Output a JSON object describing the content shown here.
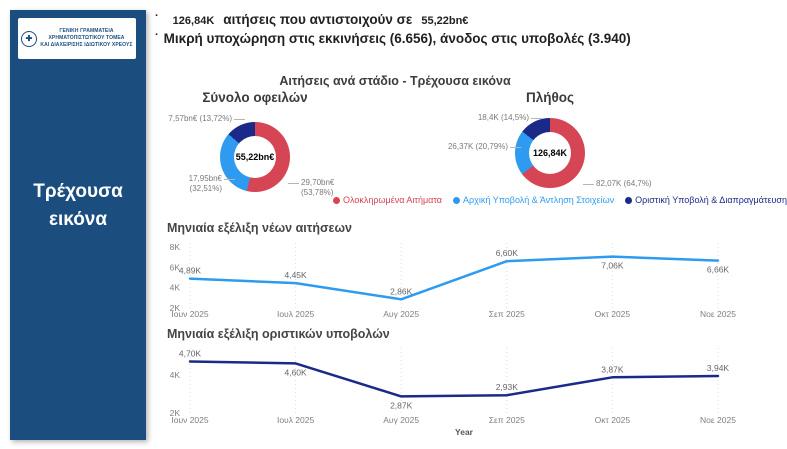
{
  "sidebar": {
    "logo_line1": "ΓΕΝΙΚΗ ΓΡΑΜΜΑΤΕΙΑ ΧΡΗΜΑΤΟΠΙΣΤΩΤΙΚΟΥ ΤΟΜΕΑ",
    "logo_line2": "ΚΑΙ ΔΙΑΧΕΙΡΙΣΗΣ ΙΔΙΩΤΙΚΟΥ ΧΡΕΟΥΣ",
    "tab_label": "Τρέχουσα εικόνα",
    "bg_color": "#1b4e7f"
  },
  "header": {
    "line1_value1": "126,84K",
    "line1_text": "αιτήσεις που αντιστοιχούν σε",
    "line1_value2": "55,22bn€",
    "line2_text": "Μικρή υποχώρηση στις εκκινήσεις (6.656), άνοδος στις υποβολές (3.940)"
  },
  "donut_section": {
    "title": "Αιτήσεις ανά στάδιο - Τρέχουσα εικόνα",
    "legend": [
      {
        "label": "Ολοκληρωμένα Αιτήματα",
        "color": "#d64554"
      },
      {
        "label": "Αρχική Υποβολή & Άντληση Στοιχείων",
        "color": "#2e9bf0"
      },
      {
        "label": "Οριστική Υποβολή & Διαπραγμάτευση",
        "color": "#1b2a88"
      }
    ]
  },
  "chart_data": [
    {
      "type": "pie",
      "title": "Σύνολο οφειλών",
      "center_label": "55,22bn€",
      "slices": [
        {
          "name": "Ολοκληρωμένα Αιτήματα",
          "value": "29,70bn€",
          "pct": 53.78,
          "callout": "29,70bn€\n(53,78%)",
          "color": "#d64554"
        },
        {
          "name": "Αρχική Υποβολή & Άντληση Στοιχείων",
          "value": "17,95bn€",
          "pct": 32.51,
          "callout": "17,95bn€\n(32,51%)",
          "color": "#2e9bf0"
        },
        {
          "name": "Οριστική Υποβολή & Διαπραγμάτευση",
          "value": "7,57bn€",
          "pct": 13.72,
          "callout": "7,57bn€ (13,72%)",
          "color": "#1b2a88"
        }
      ]
    },
    {
      "type": "pie",
      "title": "Πλήθος",
      "center_label": "126,84K",
      "slices": [
        {
          "name": "Ολοκληρωμένα Αιτήματα",
          "value": "82,07K",
          "pct": 64.7,
          "callout": "82,07K (64,7%)",
          "color": "#d64554"
        },
        {
          "name": "Αρχική Υποβολή & Άντληση Στοιχείων",
          "value": "26,37K",
          "pct": 20.79,
          "callout": "26,37K (20,79%)",
          "color": "#2e9bf0"
        },
        {
          "name": "Οριστική Υποβολή & Διαπραγμάτευση",
          "value": "18,4K",
          "pct": 14.5,
          "callout": "18,4K (14,5%)",
          "color": "#1b2a88"
        }
      ]
    },
    {
      "type": "line",
      "title": "Μηνιαία εξέλιξη νέων αιτήσεων",
      "categories": [
        "Ιουν 2025",
        "Ιουλ 2025",
        "Αυγ 2025",
        "Σεπ 2025",
        "Οκτ 2025",
        "Νοε 2025"
      ],
      "values": [
        4890,
        4450,
        2860,
        6600,
        7060,
        6660
      ],
      "point_labels": [
        "4,89K",
        "4,45K",
        "2,86K",
        "6,60K",
        "7,06K",
        "6,66K"
      ],
      "label_side": [
        "above",
        "above",
        "above",
        "above",
        "below",
        "below"
      ],
      "ylim": [
        2000,
        8000
      ],
      "ytick_values": [
        2000,
        4000,
        6000,
        8000
      ],
      "ytick_labels": [
        "2K",
        "4K",
        "6K",
        "8K"
      ],
      "color": "#2e9bf0",
      "xlabel": ""
    },
    {
      "type": "line",
      "title": "Μηνιαία εξέλιξη οριστικών υποβολών",
      "categories": [
        "Ιουν 2025",
        "Ιουλ 2025",
        "Αυγ 2025",
        "Σεπ 2025",
        "Οκτ 2025",
        "Νοε 2025"
      ],
      "values": [
        4700,
        4600,
        2870,
        2930,
        3870,
        3940
      ],
      "point_labels": [
        "4,70K",
        "4,60K",
        "2,87K",
        "2,93K",
        "3,87K",
        "3,94K"
      ],
      "label_side": [
        "above",
        "below",
        "below",
        "above",
        "above",
        "above"
      ],
      "ylim": [
        2000,
        5300
      ],
      "ytick_values": [
        2000,
        4000
      ],
      "ytick_labels": [
        "2K",
        "4K"
      ],
      "color": "#1b2a88",
      "xlabel": "Year"
    }
  ]
}
